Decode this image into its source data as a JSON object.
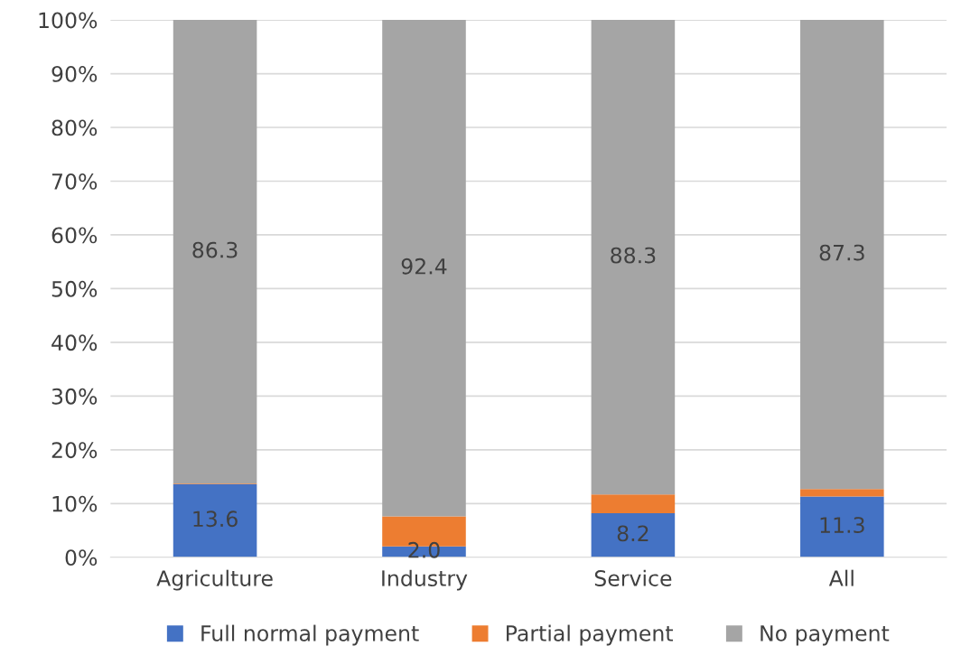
{
  "chart_data": {
    "type": "bar",
    "stacked": true,
    "categories": [
      "Agriculture",
      "Industry",
      "Service",
      "All"
    ],
    "series": [
      {
        "name": "Full normal payment",
        "color": "#4472c4",
        "values": [
          13.6,
          2.0,
          8.2,
          11.3
        ],
        "value_labels": [
          "13.6",
          "2.0",
          "8.2",
          "11.3"
        ]
      },
      {
        "name": "Partial payment",
        "color": "#ed7d31",
        "values": [
          0.1,
          5.6,
          3.5,
          1.4
        ],
        "value_labels": [
          null,
          null,
          null,
          null
        ]
      },
      {
        "name": "No payment",
        "color": "#a5a5a5",
        "values": [
          86.3,
          92.4,
          88.3,
          87.3
        ],
        "value_labels": [
          "86.3",
          "92.4",
          "88.3",
          "87.3"
        ]
      }
    ],
    "ylim": [
      0,
      100
    ],
    "yticks": [
      {
        "value": 0,
        "label": "0%"
      },
      {
        "value": 10,
        "label": "10%"
      },
      {
        "value": 20,
        "label": "20%"
      },
      {
        "value": 30,
        "label": "30%"
      },
      {
        "value": 40,
        "label": "40%"
      },
      {
        "value": 50,
        "label": "50%"
      },
      {
        "value": 60,
        "label": "60%"
      },
      {
        "value": 70,
        "label": "70%"
      },
      {
        "value": 80,
        "label": "80%"
      },
      {
        "value": 90,
        "label": "90%"
      },
      {
        "value": 100,
        "label": "100%"
      }
    ],
    "grid": "y",
    "legend": "bottom"
  }
}
